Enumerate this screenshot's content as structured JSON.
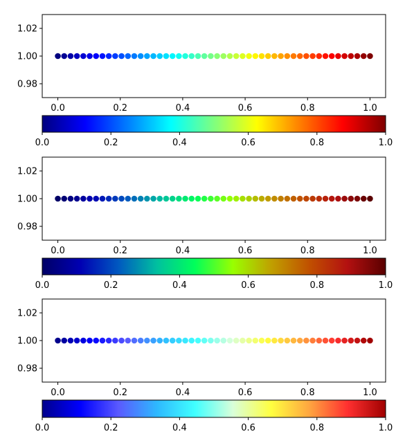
{
  "chart_data": [
    {
      "type": "scatter",
      "colormap": "jet",
      "x_start": 0.0,
      "x_end": 1.0,
      "num_points": 50,
      "y_value": 1.0,
      "xlim": [
        -0.05,
        1.05
      ],
      "ylim": [
        0.97,
        1.03
      ],
      "x_ticks": [
        "0.0",
        "0.2",
        "0.4",
        "0.6",
        "0.8",
        "1.0"
      ],
      "y_ticks": [
        "0.98",
        "1.00",
        "1.02"
      ],
      "colorbar_ticks": [
        "0.0",
        "0.2",
        "0.4",
        "0.6",
        "0.8",
        "1.0"
      ],
      "colorbar_stops": [
        "#00007f",
        "#0000ff",
        "#007fff",
        "#00ffff",
        "#7fff7f",
        "#ffff00",
        "#ff7f00",
        "#ff0000",
        "#7f0000"
      ]
    },
    {
      "type": "scatter",
      "colormap": "jet-variant",
      "x_start": 0.0,
      "x_end": 1.0,
      "num_points": 50,
      "y_value": 1.0,
      "xlim": [
        -0.05,
        1.05
      ],
      "ylim": [
        0.97,
        1.03
      ],
      "x_ticks": [
        "0.0",
        "0.2",
        "0.4",
        "0.6",
        "0.8",
        "1.0"
      ],
      "y_ticks": [
        "0.98",
        "1.00",
        "1.02"
      ],
      "colorbar_ticks": [
        "0.0",
        "0.2",
        "0.4",
        "0.6",
        "0.8",
        "1.0"
      ],
      "colorbar_stops": [
        "#000066",
        "#0000b3",
        "#0059c0",
        "#00c0a0",
        "#00ff5a",
        "#99ff00",
        "#c0a000",
        "#c05000",
        "#b31010",
        "#5a0000"
      ]
    },
    {
      "type": "scatter",
      "colormap": "jet-light",
      "x_start": 0.0,
      "x_end": 1.0,
      "num_points": 50,
      "y_value": 1.0,
      "xlim": [
        -0.05,
        1.05
      ],
      "ylim": [
        0.97,
        1.03
      ],
      "x_ticks": [
        "0.0",
        "0.2",
        "0.4",
        "0.6",
        "0.8",
        "1.0"
      ],
      "y_ticks": [
        "0.98",
        "1.00",
        "1.02"
      ],
      "colorbar_ticks": [
        "0.0",
        "0.2",
        "0.4",
        "0.6",
        "0.8",
        "1.0"
      ],
      "colorbar_stops": [
        "#00008c",
        "#0000ff",
        "#5a5aff",
        "#2eb8ff",
        "#40ffff",
        "#d9ffd9",
        "#ffff40",
        "#ffa640",
        "#ff3030",
        "#a00000"
      ]
    }
  ]
}
